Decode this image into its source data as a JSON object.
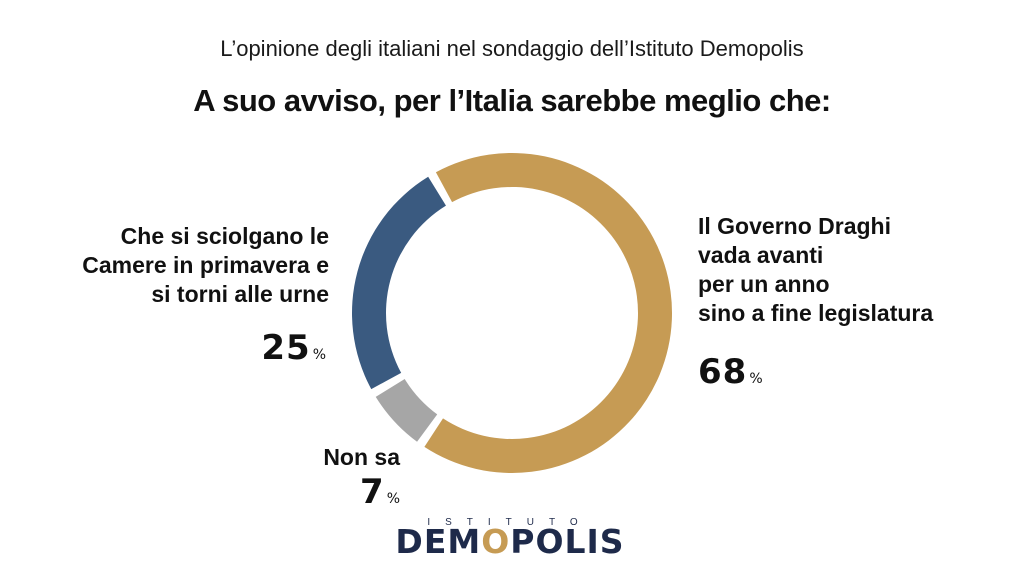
{
  "header": {
    "subtitle": "L’opinione degli italiani nel sondaggio dell’Istituto Demopolis",
    "title": "A suo avviso, per l’Italia sarebbe meglio che:"
  },
  "chart_data": {
    "type": "pie",
    "variant": "donut",
    "title": "A suo avviso, per l’Italia sarebbe meglio che:",
    "subtitle": "L’opinione degli italiani nel sondaggio dell’Istituto Demopolis",
    "unit": "%",
    "slices": [
      {
        "label_lines": [
          "Il Governo Draghi",
          "vada avanti",
          "per un anno",
          "sino a fine legislatura"
        ],
        "value": 68,
        "color": "#c69b54"
      },
      {
        "label_lines": [
          "Non sa"
        ],
        "value": 7,
        "color": "#a6a6a6"
      },
      {
        "label_lines": [
          "Che si sciolgano le",
          "Camere in primavera e",
          "si torni alle urne"
        ],
        "value": 25,
        "color": "#3a5a80"
      }
    ],
    "legend": "none"
  },
  "labels": {
    "left": [
      "Che si sciolgano le",
      "Camere in primavera e",
      "si torni alle urne"
    ],
    "right": [
      "Il Governo Draghi",
      "vada avanti",
      "per un anno",
      "sino a fine legislatura"
    ],
    "bottom": [
      "Non sa"
    ],
    "left_value": "25",
    "right_value": "68",
    "bottom_value": "7",
    "percent_symbol": "%"
  },
  "logo": {
    "top_text": "ISTITUTO",
    "main_pre": "DEM",
    "main_o": "O",
    "main_post": "POLIS"
  }
}
